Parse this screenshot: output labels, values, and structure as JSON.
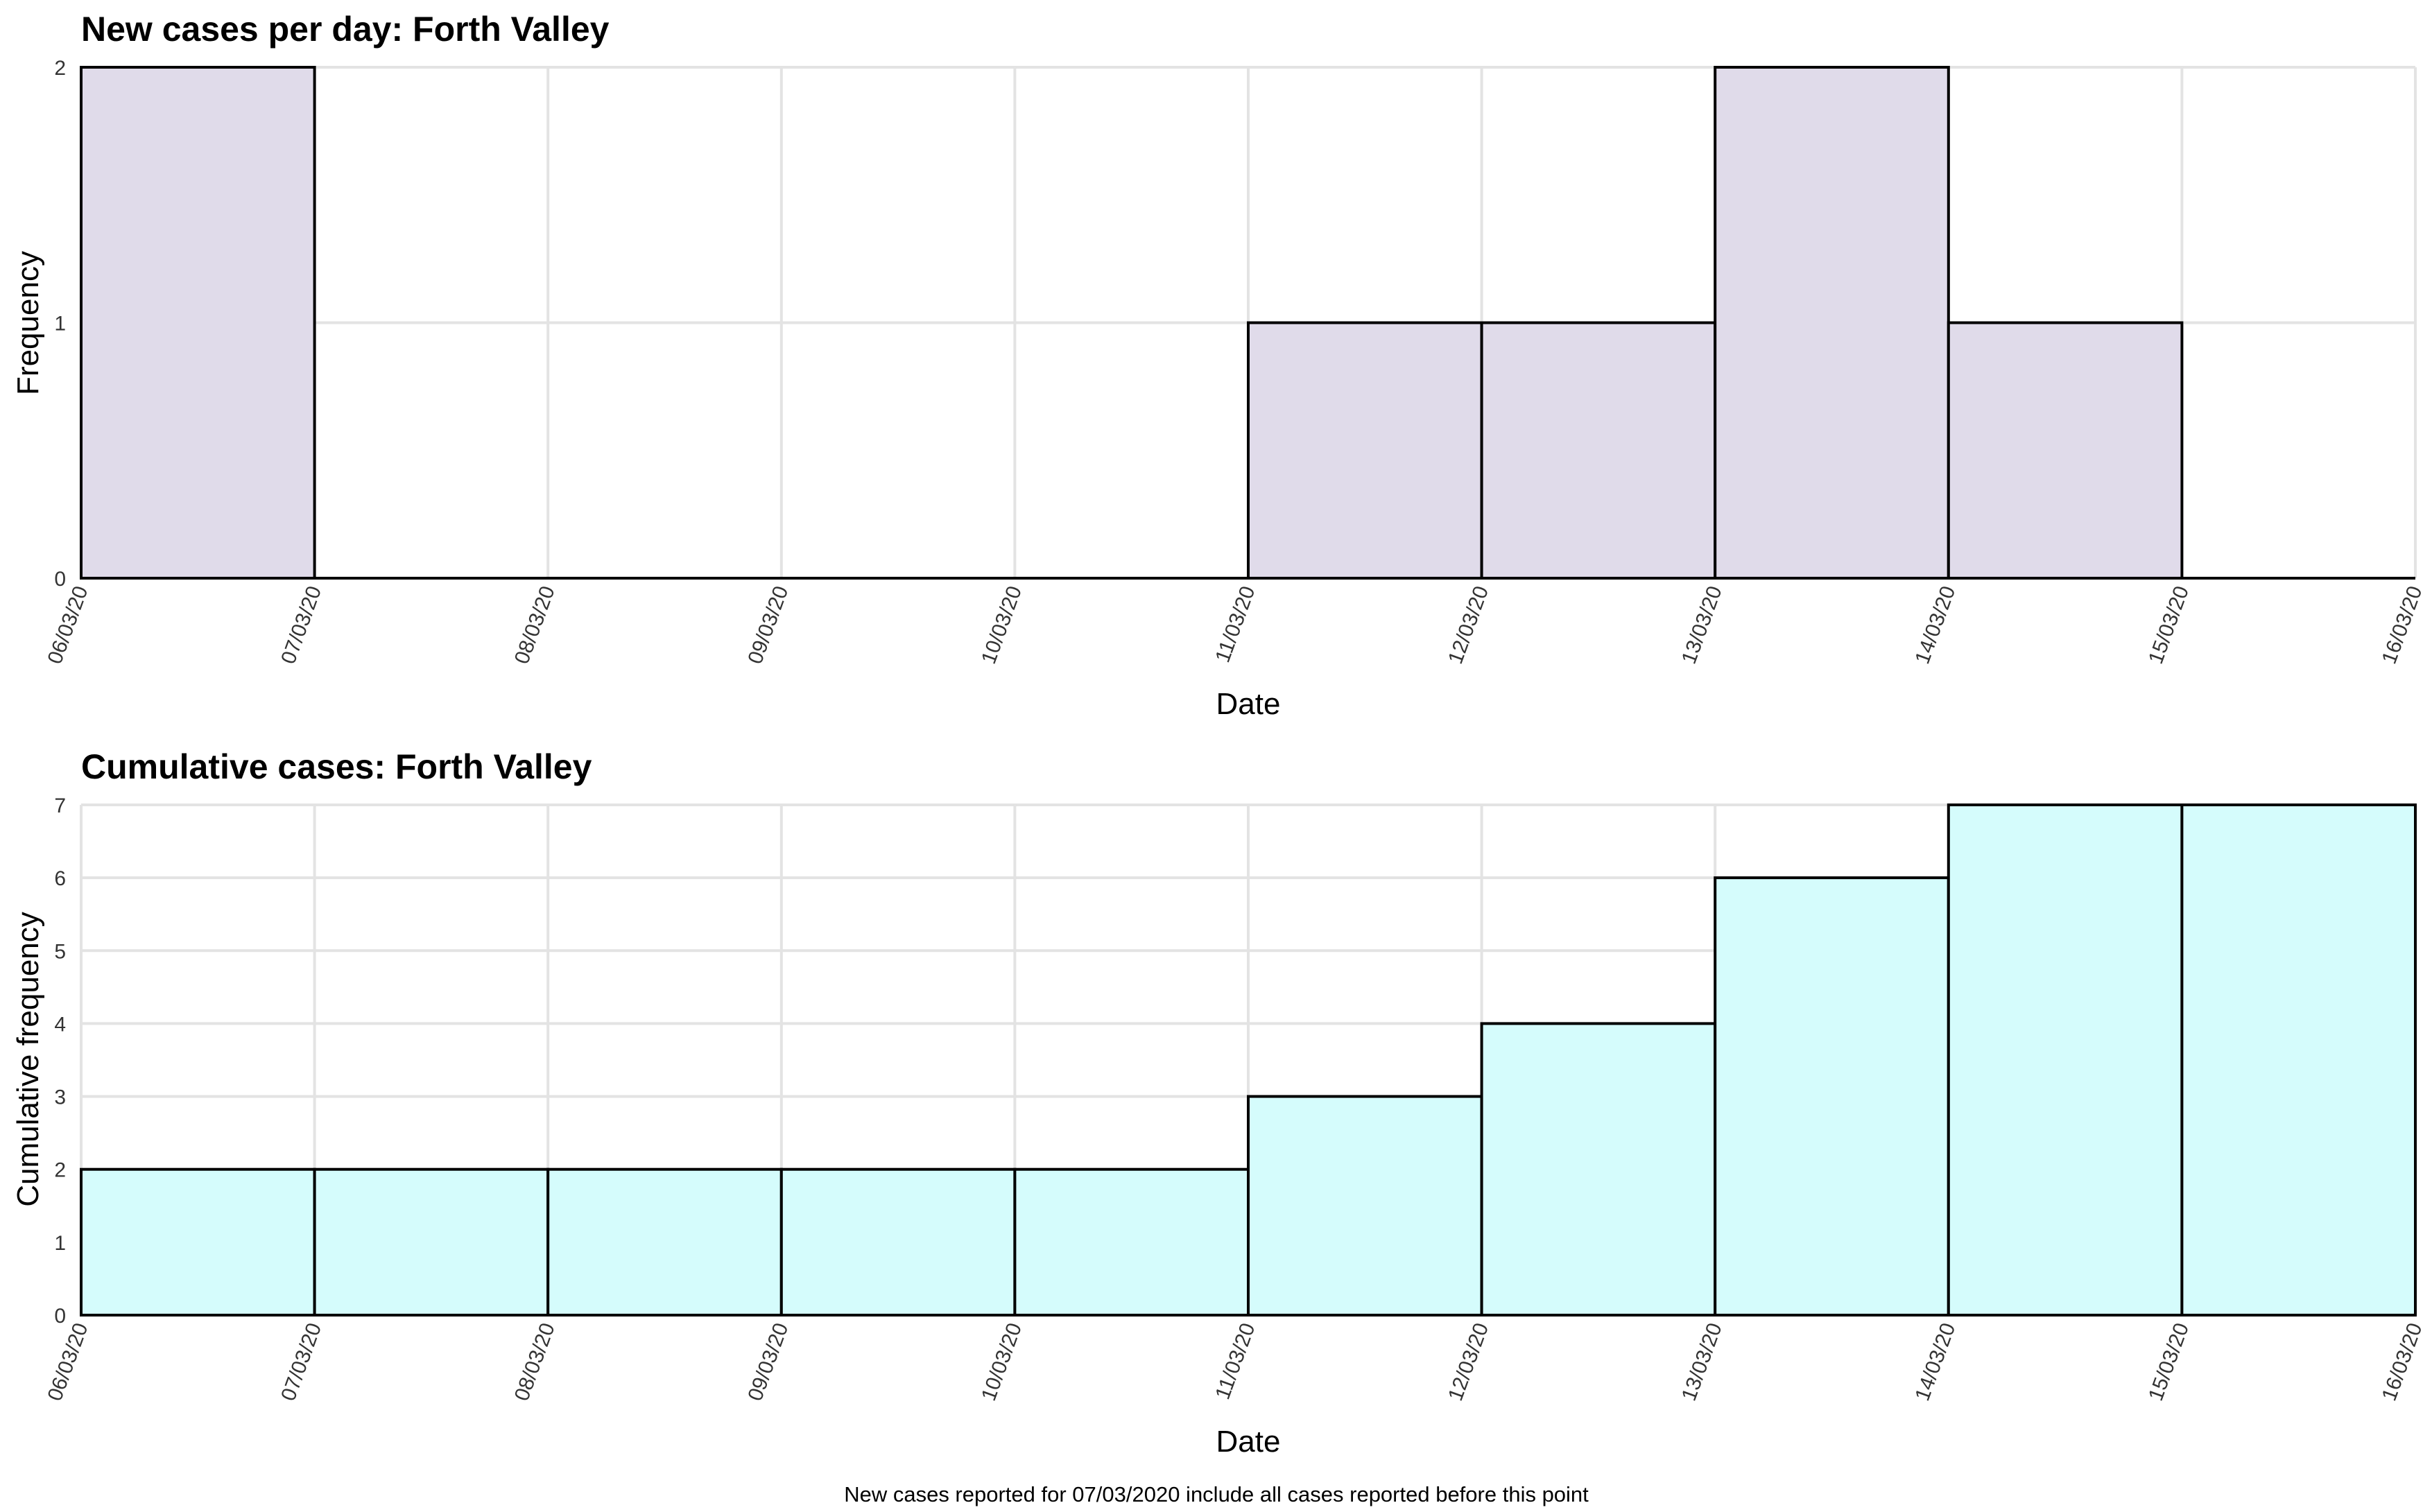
{
  "caption": "New cases reported for 07/03/2020 include all cases reported before this point",
  "chart_data": [
    {
      "type": "bar",
      "title": "New cases per day: Forth Valley",
      "xlabel": "Date",
      "ylabel": "Frequency",
      "x_ticks": [
        "06/03/20",
        "07/03/20",
        "08/03/20",
        "09/03/20",
        "10/03/20",
        "11/03/20",
        "12/03/20",
        "13/03/20",
        "14/03/20",
        "15/03/20",
        "16/03/20"
      ],
      "y_ticks": [
        0,
        1,
        2
      ],
      "ylim": [
        0,
        2
      ],
      "bins": [
        "06/03/20",
        "07/03/20",
        "08/03/20",
        "09/03/20",
        "10/03/20",
        "11/03/20",
        "12/03/20",
        "13/03/20",
        "14/03/20",
        "15/03/20"
      ],
      "values": [
        2,
        0,
        0,
        0,
        0,
        1,
        1,
        2,
        1,
        0
      ],
      "fill": "#e0dbea",
      "grid": true
    },
    {
      "type": "bar",
      "title": "Cumulative cases: Forth Valley",
      "xlabel": "Date",
      "ylabel": "Cumulative frequency",
      "x_ticks": [
        "06/03/20",
        "07/03/20",
        "08/03/20",
        "09/03/20",
        "10/03/20",
        "11/03/20",
        "12/03/20",
        "13/03/20",
        "14/03/20",
        "15/03/20",
        "16/03/20"
      ],
      "y_ticks": [
        0,
        1,
        2,
        3,
        4,
        5,
        6,
        7
      ],
      "ylim": [
        0,
        7
      ],
      "bins": [
        "06/03/20",
        "07/03/20",
        "08/03/20",
        "09/03/20",
        "10/03/20",
        "11/03/20",
        "12/03/20",
        "13/03/20",
        "14/03/20",
        "15/03/20"
      ],
      "values": [
        2,
        2,
        2,
        2,
        2,
        3,
        4,
        6,
        7,
        7
      ],
      "fill": "#d5fcfc",
      "grid": true
    }
  ]
}
